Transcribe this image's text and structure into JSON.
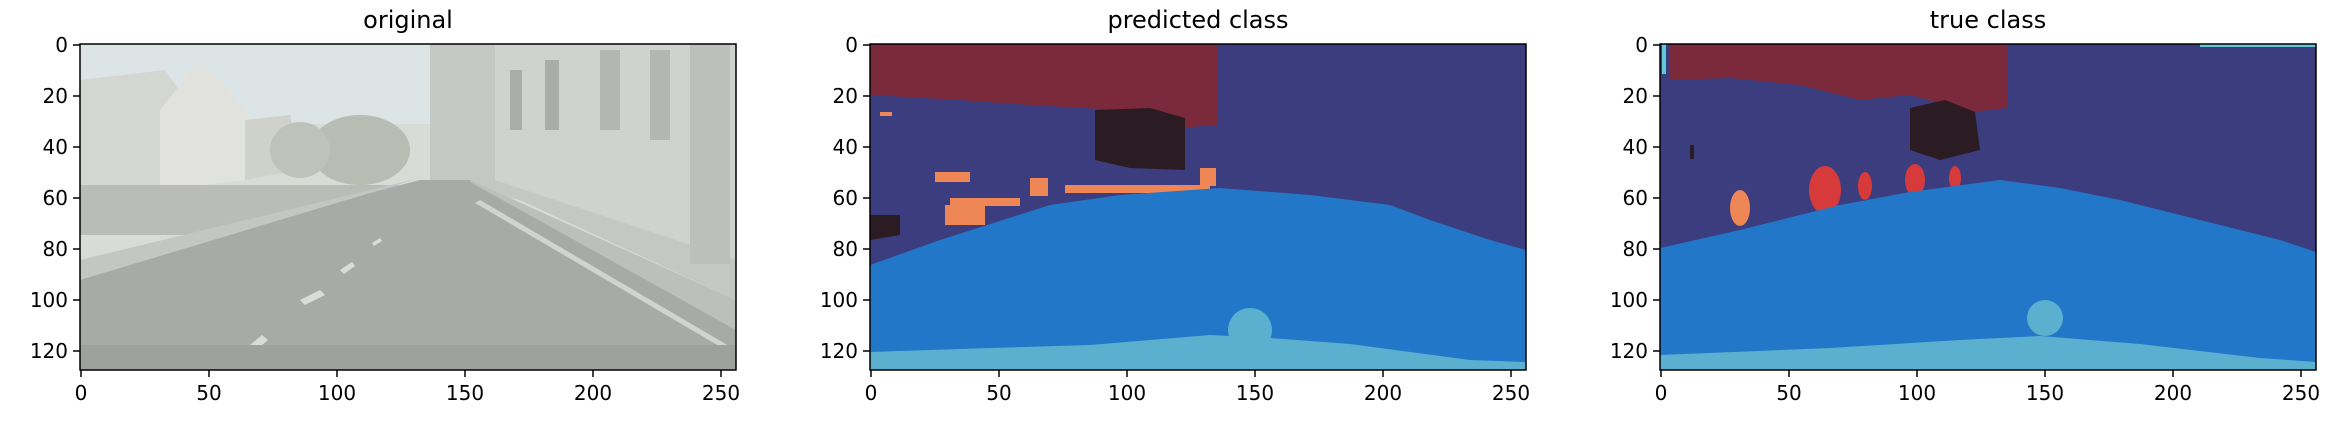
{
  "figure": {
    "panels": [
      {
        "id": "original",
        "title": "original",
        "xticks": [
          "0",
          "50",
          "100",
          "150",
          "200",
          "250"
        ],
        "yticks": [
          "0",
          "20",
          "40",
          "60",
          "80",
          "100",
          "120"
        ]
      },
      {
        "id": "predicted",
        "title": "predicted class",
        "xticks": [
          "0",
          "50",
          "100",
          "150",
          "200",
          "250"
        ],
        "yticks": [
          "0",
          "20",
          "40",
          "60",
          "80",
          "100",
          "120"
        ]
      },
      {
        "id": "true",
        "title": "true class",
        "xticks": [
          "0",
          "50",
          "100",
          "150",
          "200",
          "250"
        ],
        "yticks": [
          "0",
          "20",
          "40",
          "60",
          "80",
          "100",
          "120"
        ]
      }
    ],
    "colors": {
      "sky": "#7a2a3a",
      "building": "#3b3d7e",
      "road": "#2277c9",
      "sidewalk_bottom": "#5bb0cf",
      "vegetation": "#2a1c22",
      "pedestrian": "#ef8656",
      "person_true": "#d63a3a",
      "pole": "#63c7d6",
      "photo_bg": "#cfd3cd"
    }
  }
}
